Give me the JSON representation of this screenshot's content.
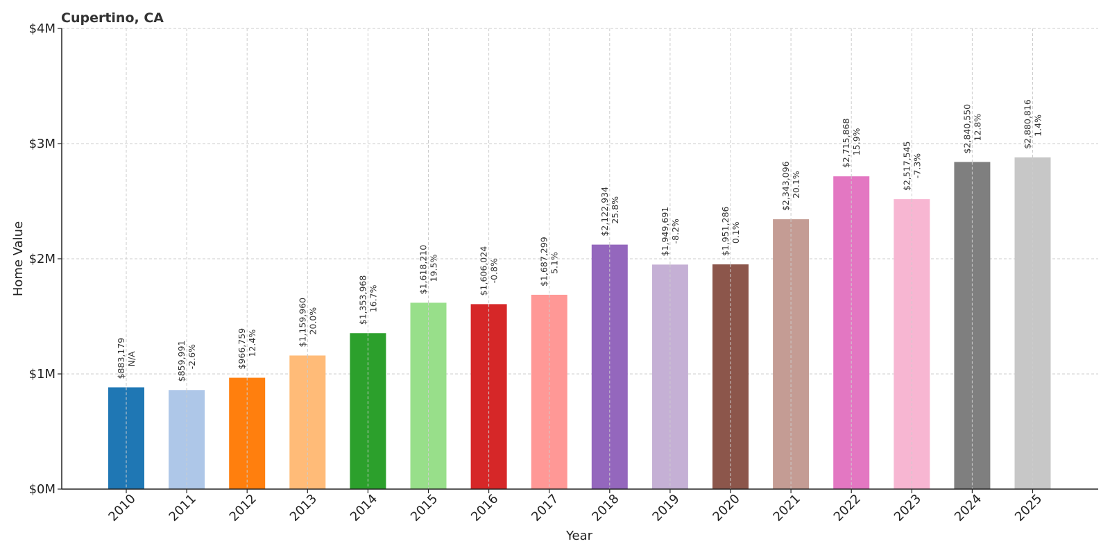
{
  "chart_data": {
    "type": "bar",
    "title": "Cupertino, CA",
    "xlabel": "Year",
    "ylabel": "Home Value",
    "ylim": [
      0,
      4000000
    ],
    "yticks": [
      0,
      1000000,
      2000000,
      3000000,
      4000000
    ],
    "ytick_labels": [
      "$0M",
      "$1M",
      "$2M",
      "$3M",
      "$4M"
    ],
    "grid": true,
    "categories": [
      "2010",
      "2011",
      "2012",
      "2013",
      "2014",
      "2015",
      "2016",
      "2017",
      "2018",
      "2019",
      "2020",
      "2021",
      "2022",
      "2023",
      "2024",
      "2025"
    ],
    "values": [
      883179,
      859991,
      966759,
      1159960,
      1353968,
      1618210,
      1606024,
      1687299,
      2122934,
      1949691,
      1951286,
      2343096,
      2715868,
      2517545,
      2840550,
      2880816
    ],
    "value_labels": [
      "$883,179",
      "$859,991",
      "$966,759",
      "$1,159,960",
      "$1,353,968",
      "$1,618,210",
      "$1,606,024",
      "$1,687,299",
      "$2,122,934",
      "$1,949,691",
      "$1,951,286",
      "$2,343,096",
      "$2,715,868",
      "$2,517,545",
      "$2,840,550",
      "$2,880,816"
    ],
    "change_labels": [
      "N/A",
      "-2.6%",
      "12.4%",
      "20.0%",
      "16.7%",
      "19.5%",
      "-0.8%",
      "5.1%",
      "25.8%",
      "-8.2%",
      "0.1%",
      "20.1%",
      "15.9%",
      "-7.3%",
      "12.8%",
      "1.4%"
    ],
    "colors": [
      "#1f77b4",
      "#aec7e8",
      "#ff7f0e",
      "#ffbb78",
      "#2ca02c",
      "#98df8a",
      "#d62728",
      "#ff9896",
      "#9467bd",
      "#c5b0d5",
      "#8c564b",
      "#c49c94",
      "#e377c2",
      "#f7b6d2",
      "#7f7f7f",
      "#c7c7c7"
    ]
  }
}
